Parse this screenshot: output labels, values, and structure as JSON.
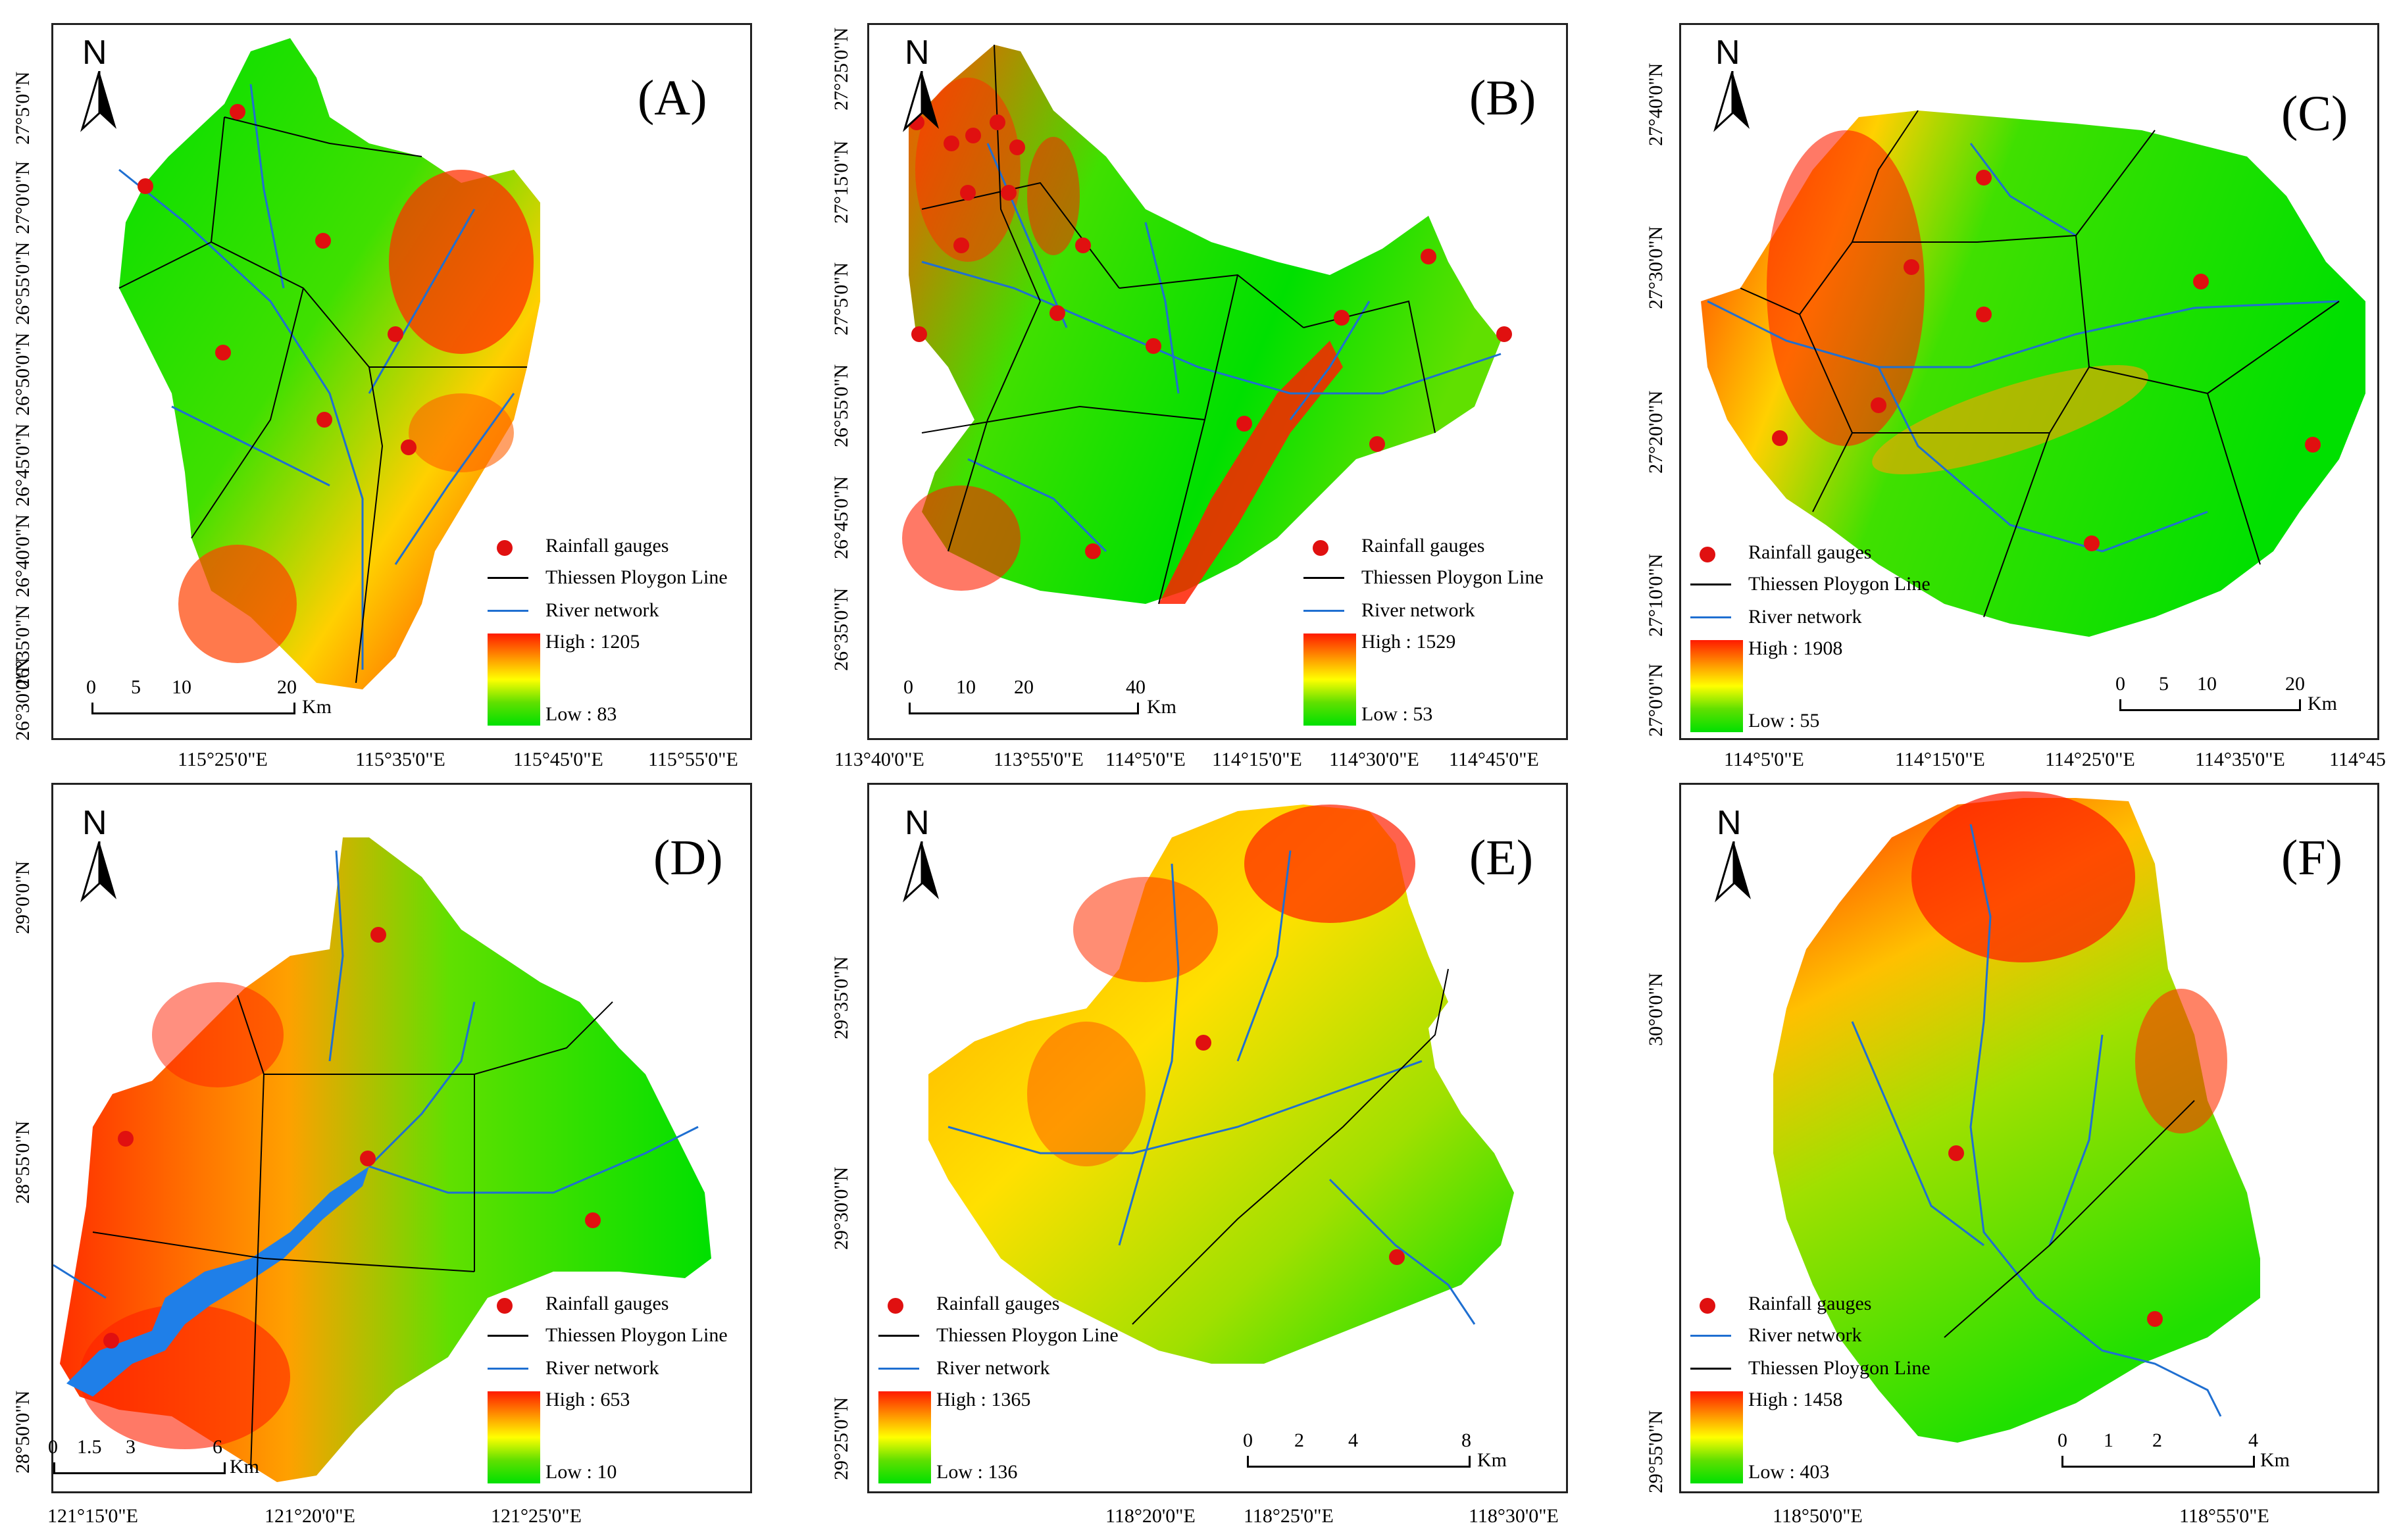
{
  "legend_text": {
    "gauges": "Rainfall gauges",
    "thiessen": "Thiessen Ploygon Line",
    "river": "River network"
  },
  "north": "N",
  "km": "Km",
  "colors": {
    "high": "#ff1a00",
    "mid": "#ffff00",
    "low": "#00e000",
    "river": "#1f6fd1",
    "gauge": "#e01010"
  },
  "panels": [
    {
      "label": "(A)",
      "high": "High : 1205",
      "low": "Low : 83",
      "lat": [
        "27°5'0\"N",
        "27°0'0\"N",
        "26°55'0\"N",
        "26°50'0\"N",
        "26°45'0\"N",
        "26°40'0\"N",
        "26°35'0\"N",
        "26°30'0\"N"
      ],
      "lon": [
        "115°25'0\"E",
        "115°35'0\"E",
        "115°45'0\"E",
        "115°55'0\"E"
      ],
      "scale": [
        "0",
        "5",
        "10",
        "20"
      ]
    },
    {
      "label": "(B)",
      "high": "High : 1529",
      "low": "Low : 53",
      "lat": [
        "27°25'0\"N",
        "27°15'0\"N",
        "27°5'0\"N",
        "26°55'0\"N",
        "26°45'0\"N",
        "26°35'0\"N"
      ],
      "lon": [
        "113°40'0\"E",
        "113°55'0\"E",
        "114°5'0\"E",
        "114°15'0\"E",
        "114°30'0\"E",
        "114°45'0\"E"
      ],
      "scale": [
        "0",
        "10",
        "20",
        "40"
      ]
    },
    {
      "label": "(C)",
      "high": "High : 1908",
      "low": "Low : 55",
      "lat": [
        "27°40'0\"N",
        "27°30'0\"N",
        "27°20'0\"N",
        "27°10'0\"N",
        "27°0'0\"N"
      ],
      "lon": [
        "114°5'0\"E",
        "114°15'0\"E",
        "114°25'0\"E",
        "114°35'0\"E",
        "114°45"
      ],
      "scale": [
        "0",
        "5",
        "10",
        "20"
      ]
    },
    {
      "label": "(D)",
      "high": "High : 653",
      "low": "Low : 10",
      "lat": [
        "29°0'0\"N",
        "28°55'0\"N",
        "28°50'0\"N"
      ],
      "lon": [
        "121°15'0\"E",
        "121°20'0\"E",
        "121°25'0\"E"
      ],
      "scale": [
        "0",
        "1.5",
        "3",
        "6"
      ]
    },
    {
      "label": "(E)",
      "high": "High : 1365",
      "low": "Low : 136",
      "lat": [
        "29°35'0\"N",
        "29°30'0\"N",
        "29°25'0\"N"
      ],
      "lon": [
        "118°20'0\"E",
        "118°25'0\"E",
        "118°30'0\"E"
      ],
      "scale": [
        "0",
        "2",
        "4",
        "8"
      ]
    },
    {
      "label": "(F)",
      "high": "High : 1458",
      "low": "Low : 403",
      "lat": [
        "30°0'0\"N",
        "29°55'0\"N"
      ],
      "lon": [
        "118°50'0\"E",
        "118°55'0\"E"
      ],
      "scale": [
        "0",
        "1",
        "2",
        "4"
      ]
    }
  ]
}
